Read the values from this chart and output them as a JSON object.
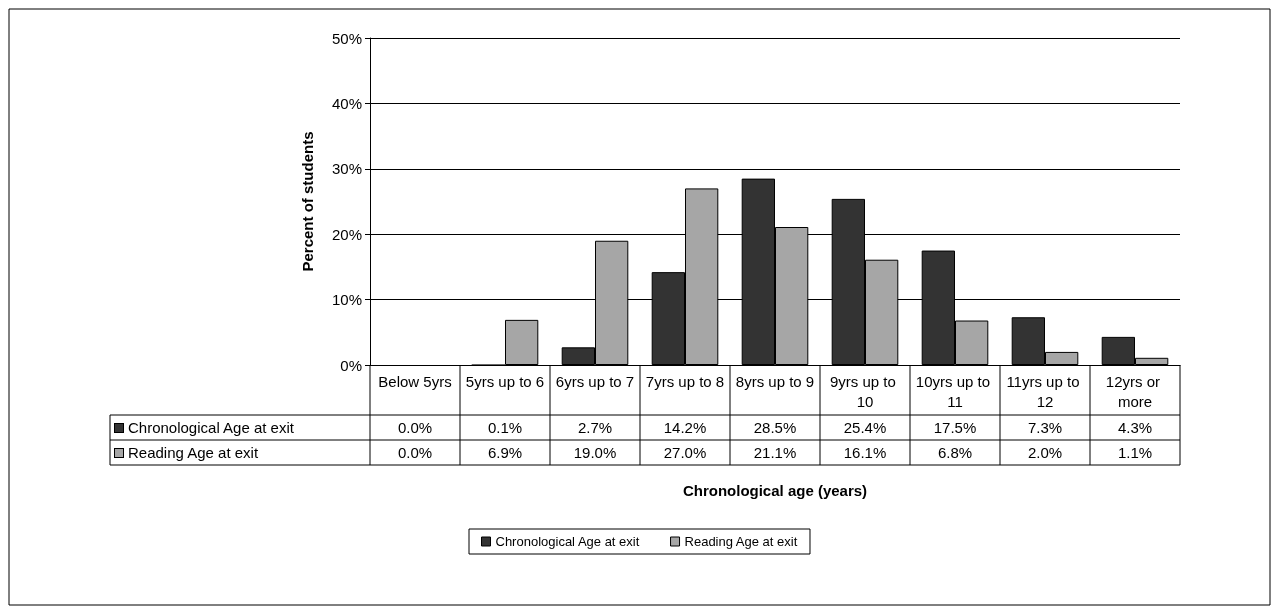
{
  "chart_data": {
    "type": "bar",
    "xlabel": "Chronological age (years)",
    "ylabel": "Percent of students",
    "categories": [
      "Below 5yrs",
      "5yrs up to 6",
      "6yrs up to 7",
      "7yrs up to 8",
      "8yrs up to 9",
      "9yrs up to 10",
      "10yrs up to 11",
      "11yrs up to 12",
      "12yrs or more"
    ],
    "series": [
      {
        "name": "Chronological Age at exit",
        "color": "#333333",
        "values": [
          0.0,
          0.1,
          2.7,
          14.2,
          28.5,
          25.4,
          17.5,
          7.3,
          4.3
        ],
        "value_labels": [
          "0.0%",
          "0.1%",
          "2.7%",
          "14.2%",
          "28.5%",
          "25.4%",
          "17.5%",
          "7.3%",
          "4.3%"
        ]
      },
      {
        "name": "Reading Age at exit",
        "color": "#a6a6a6",
        "values": [
          0.0,
          6.9,
          19.0,
          27.0,
          21.1,
          16.1,
          6.8,
          2.0,
          1.1
        ],
        "value_labels": [
          "0.0%",
          "6.9%",
          "19.0%",
          "27.0%",
          "21.1%",
          "16.1%",
          "6.8%",
          "2.0%",
          "1.1%"
        ]
      }
    ],
    "ylim": [
      0,
      50
    ],
    "yticks": [
      {
        "value": 0,
        "label": "0%"
      },
      {
        "value": 10,
        "label": "10%"
      },
      {
        "value": 20,
        "label": "20%"
      },
      {
        "value": 30,
        "label": "30%"
      },
      {
        "value": 40,
        "label": "40%"
      },
      {
        "value": 50,
        "label": "50%"
      }
    ],
    "grid": "y",
    "legend": "bottom"
  }
}
